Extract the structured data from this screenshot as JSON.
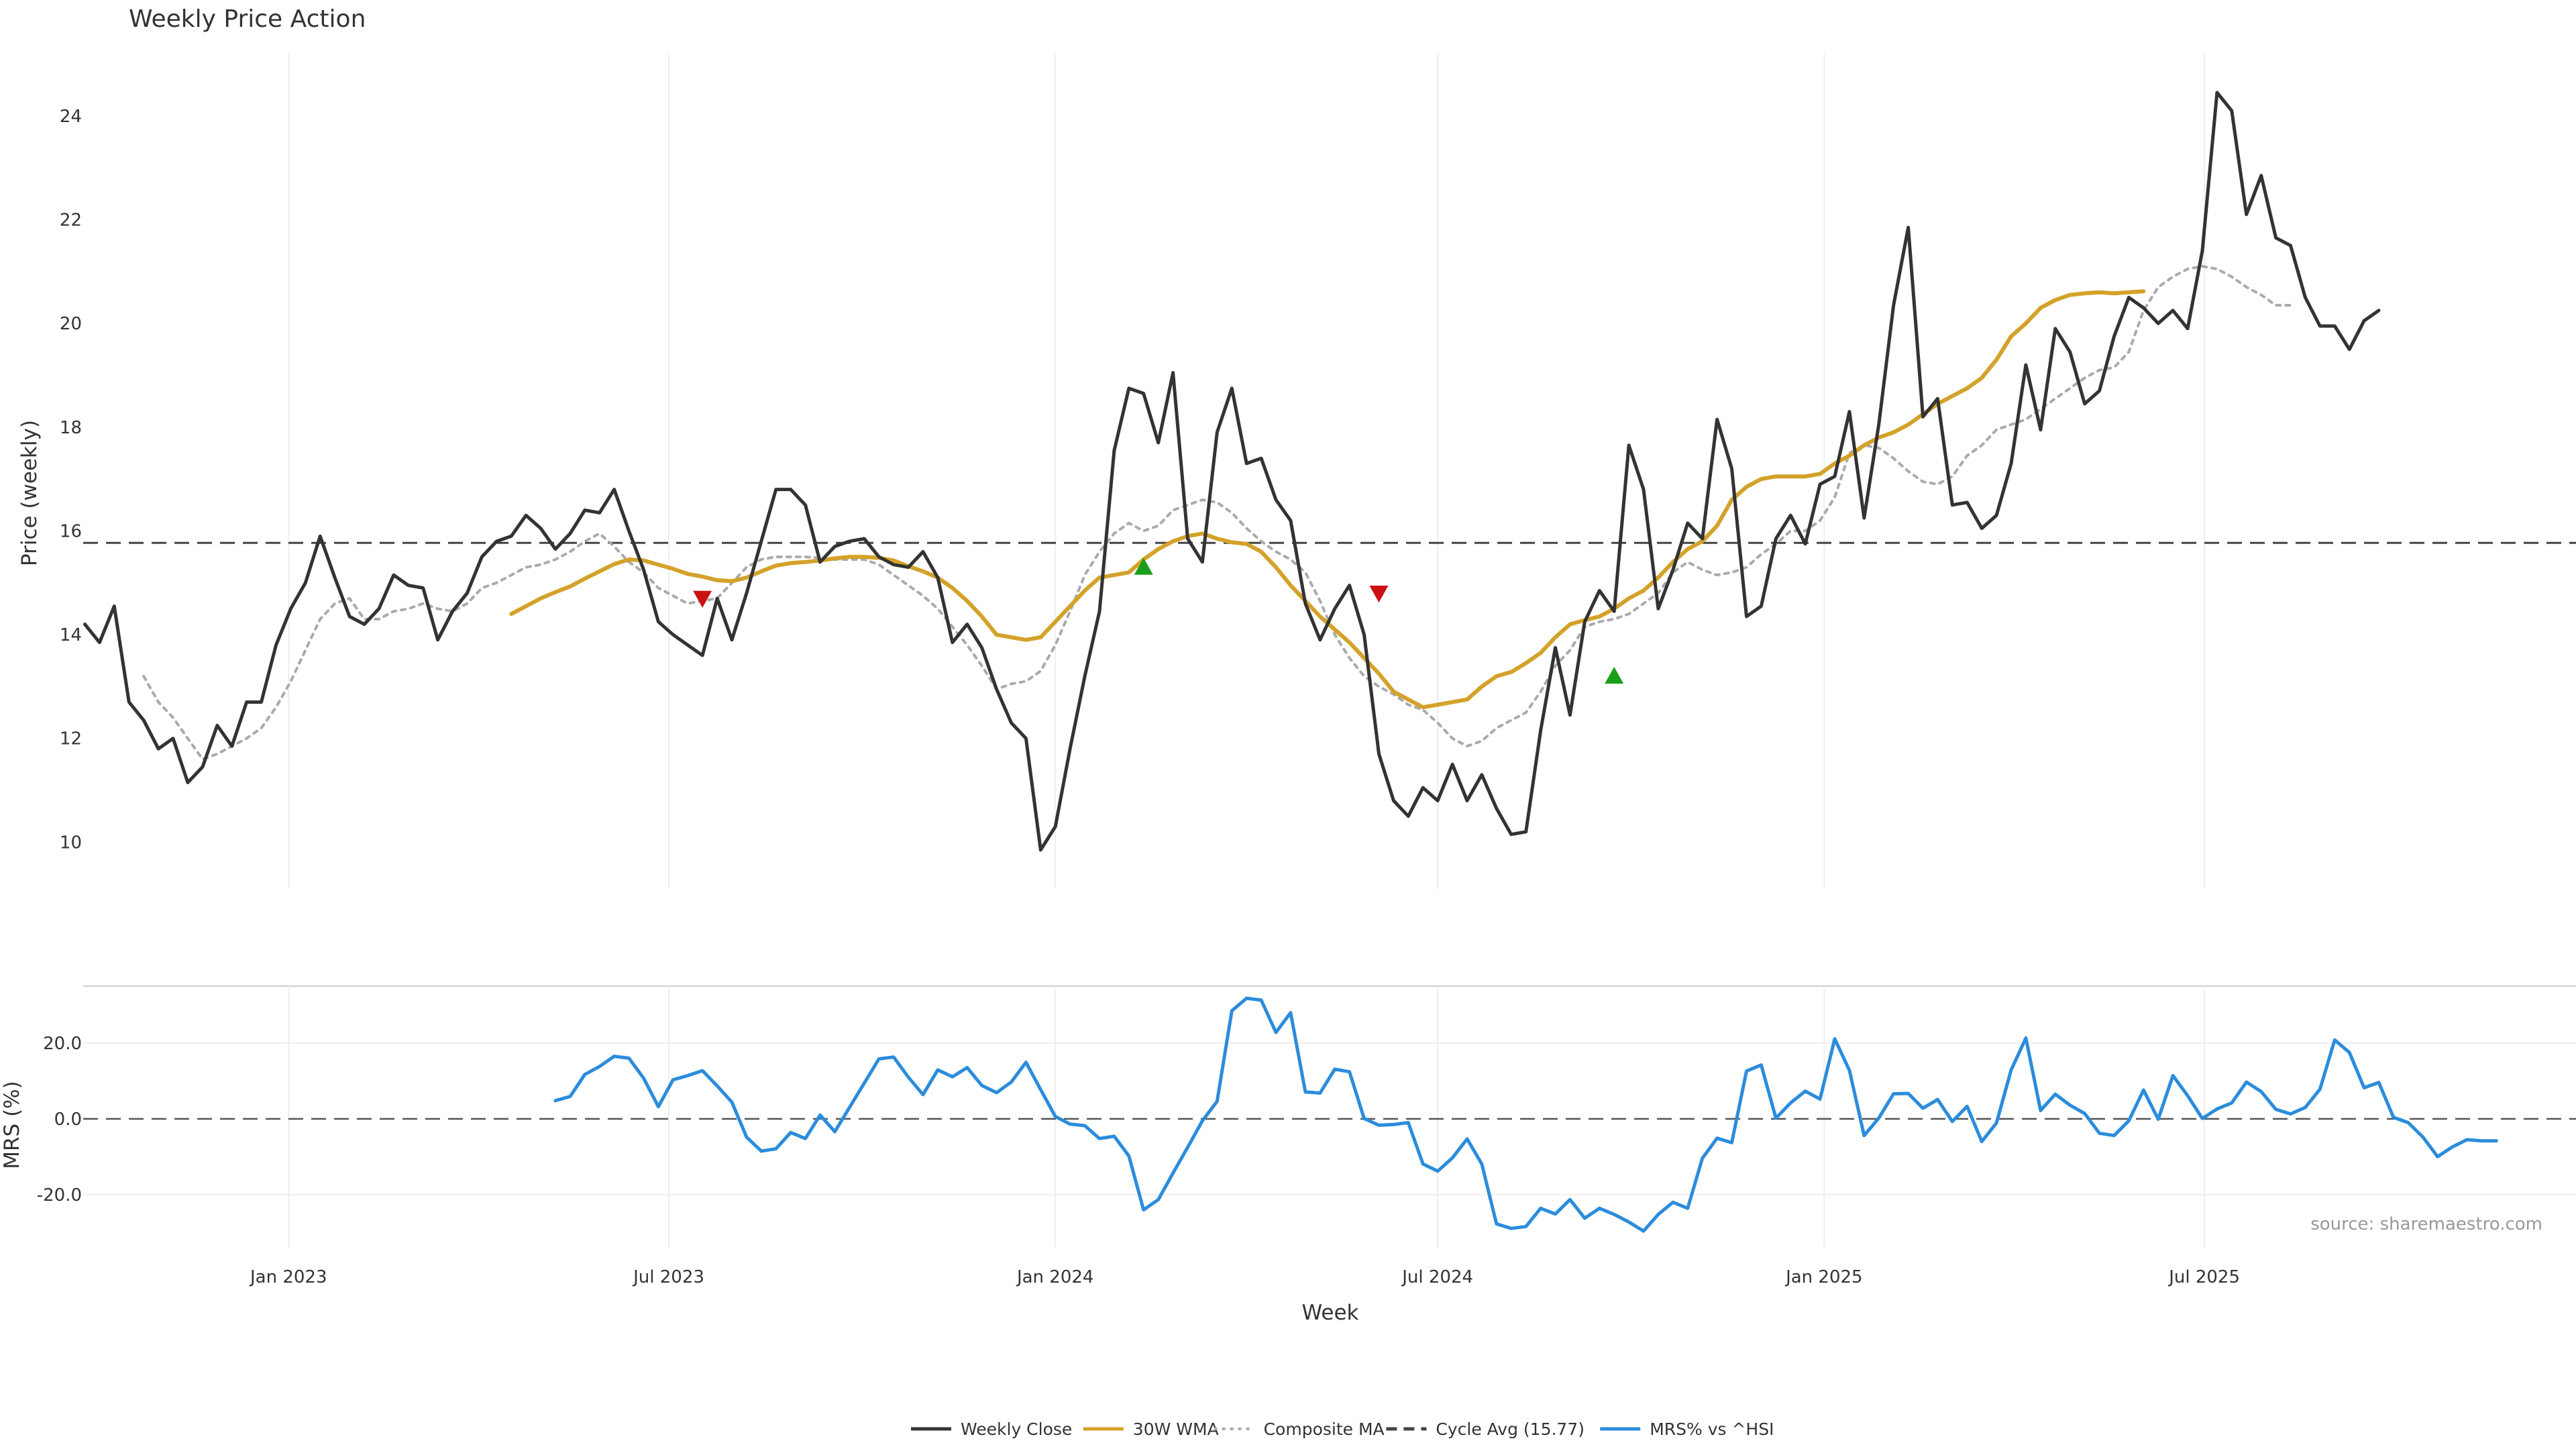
{
  "chart_data": {
    "type": "line",
    "title": "Weekly Price Action",
    "xlabel": "Week",
    "source": "source: sharemaestro.com",
    "x_start": "2022-09-26",
    "x_ticks": [
      {
        "date": "2023-01-01",
        "label": "Jan 2023"
      },
      {
        "date": "2023-07-01",
        "label": "Jul 2023"
      },
      {
        "date": "2024-01-01",
        "label": "Jan 2024"
      },
      {
        "date": "2024-07-01",
        "label": "Jul 2024"
      },
      {
        "date": "2025-01-01",
        "label": "Jan 2025"
      },
      {
        "date": "2025-07-01",
        "label": "Jul 2025"
      }
    ],
    "price_panel": {
      "ylabel": "Price (weekly)",
      "ylim": [
        9.1,
        25.2
      ],
      "yticks": [
        10,
        12,
        14,
        16,
        18,
        20,
        22,
        24
      ],
      "cycle_avg": 15.77
    },
    "mrs_panel": {
      "ylabel": "MRS (%)",
      "ylim": [
        -34,
        35
      ],
      "yticks": [
        20,
        0,
        -20
      ],
      "ytick_labels": [
        "20.0",
        "0.0",
        "-20.0"
      ]
    },
    "series": [
      {
        "name": "Weekly Close",
        "color": "#333333",
        "start_week": 0,
        "values": [
          14.2,
          13.85,
          14.55,
          12.7,
          12.35,
          11.8,
          12.0,
          11.15,
          11.45,
          12.25,
          11.85,
          12.7,
          12.7,
          13.8,
          14.5,
          15.0,
          15.9,
          15.1,
          14.35,
          14.2,
          14.5,
          15.15,
          14.95,
          14.9,
          13.9,
          14.45,
          14.8,
          15.5,
          15.8,
          15.9,
          16.3,
          16.05,
          15.65,
          15.95,
          16.4,
          16.35,
          16.8,
          16.0,
          15.25,
          14.25,
          14.0,
          13.8,
          13.6,
          14.7,
          13.9,
          14.8,
          15.8,
          16.8,
          16.8,
          16.5,
          15.4,
          15.7,
          15.8,
          15.85,
          15.5,
          15.35,
          15.3,
          15.6,
          15.1,
          13.85,
          14.2,
          13.75,
          12.95,
          12.3,
          12.0,
          9.85,
          10.3,
          11.8,
          13.2,
          14.45,
          17.55,
          18.75,
          18.65,
          17.7,
          19.05,
          15.85,
          15.4,
          17.9,
          18.75,
          17.3,
          17.4,
          16.6,
          16.2,
          14.6,
          13.9,
          14.5,
          14.95,
          14.0,
          11.7,
          10.8,
          10.5,
          11.05,
          10.8,
          11.5,
          10.8,
          11.3,
          10.65,
          10.15,
          10.2,
          12.15,
          13.75,
          12.45,
          14.25,
          14.85,
          14.45,
          17.65,
          16.8,
          14.5,
          15.25,
          16.15,
          15.85,
          18.15,
          17.2,
          14.35,
          14.55,
          15.85,
          16.3,
          15.75,
          16.9,
          17.05,
          18.3,
          16.25,
          18.05,
          20.35,
          21.85,
          18.2,
          18.55,
          16.5,
          16.55,
          16.05,
          16.3,
          17.3,
          19.2,
          17.95,
          19.9,
          19.45,
          18.45,
          18.7,
          19.75,
          20.5,
          20.3,
          20.0,
          20.25,
          19.9,
          21.4,
          24.45,
          24.1,
          22.1,
          22.85,
          21.65,
          21.5,
          20.5,
          19.95,
          19.95,
          19.5,
          20.05,
          20.25
        ]
      },
      {
        "name": "30W WMA",
        "color": "#d4a22a",
        "start_week": 29,
        "values": [
          14.4,
          14.55,
          14.7,
          14.82,
          14.93,
          15.08,
          15.22,
          15.36,
          15.45,
          15.43,
          15.35,
          15.27,
          15.17,
          15.12,
          15.05,
          15.03,
          15.1,
          15.22,
          15.33,
          15.38,
          15.4,
          15.43,
          15.47,
          15.5,
          15.5,
          15.48,
          15.43,
          15.32,
          15.22,
          15.1,
          14.9,
          14.65,
          14.35,
          14.0,
          13.95,
          13.9,
          13.95,
          14.25,
          14.55,
          14.85,
          15.1,
          15.15,
          15.2,
          15.45,
          15.65,
          15.8,
          15.9,
          15.95,
          15.85,
          15.78,
          15.75,
          15.6,
          15.3,
          14.95,
          14.65,
          14.35,
          14.1,
          13.85,
          13.55,
          13.25,
          12.9,
          12.75,
          12.6,
          12.65,
          12.7,
          12.75,
          13.0,
          13.2,
          13.28,
          13.45,
          13.65,
          13.95,
          14.2,
          14.28,
          14.35,
          14.5,
          14.7,
          14.85,
          15.1,
          15.4,
          15.65,
          15.8,
          16.1,
          16.6,
          16.85,
          17.0,
          17.05,
          17.05,
          17.05,
          17.1,
          17.3,
          17.45,
          17.65,
          17.8,
          17.9,
          18.05,
          18.25,
          18.45,
          18.6,
          18.75,
          18.95,
          19.3,
          19.75,
          20.0,
          20.3,
          20.45,
          20.55,
          20.58,
          20.6,
          20.58,
          20.6,
          20.62
        ]
      },
      {
        "name": "Composite MA",
        "color": "#aaaaaa",
        "start_week": 4,
        "values": [
          13.2,
          12.7,
          12.4,
          12.0,
          11.6,
          11.7,
          11.85,
          12.0,
          12.2,
          12.6,
          13.1,
          13.7,
          14.3,
          14.6,
          14.7,
          14.3,
          14.3,
          14.45,
          14.5,
          14.6,
          14.5,
          14.45,
          14.6,
          14.9,
          15.0,
          15.15,
          15.3,
          15.35,
          15.45,
          15.6,
          15.8,
          15.95,
          15.7,
          15.4,
          15.2,
          14.9,
          14.75,
          14.6,
          14.65,
          14.7,
          15.0,
          15.3,
          15.45,
          15.5,
          15.5,
          15.5,
          15.48,
          15.45,
          15.45,
          15.45,
          15.35,
          15.15,
          14.95,
          14.75,
          14.5,
          14.15,
          13.8,
          13.4,
          12.95,
          13.05,
          13.1,
          13.3,
          13.8,
          14.45,
          15.15,
          15.6,
          15.95,
          16.15,
          16.0,
          16.1,
          16.4,
          16.5,
          16.6,
          16.55,
          16.35,
          16.05,
          15.8,
          15.6,
          15.45,
          15.2,
          14.65,
          14.0,
          13.55,
          13.2,
          13.0,
          12.85,
          12.65,
          12.55,
          12.3,
          12.0,
          11.85,
          11.95,
          12.2,
          12.35,
          12.5,
          12.9,
          13.4,
          13.7,
          14.15,
          14.25,
          14.3,
          14.4,
          14.6,
          14.8,
          15.2,
          15.4,
          15.25,
          15.15,
          15.2,
          15.3,
          15.55,
          15.75,
          16.0,
          16.0,
          16.2,
          16.65,
          17.5,
          17.65,
          17.6,
          17.4,
          17.15,
          16.95,
          16.9,
          17.05,
          17.45,
          17.65,
          17.95,
          18.05,
          18.15,
          18.35,
          18.55,
          18.75,
          18.95,
          19.1,
          19.15,
          19.45,
          20.25,
          20.7,
          20.9,
          21.05,
          21.1,
          21.05,
          20.9,
          20.7,
          20.55,
          20.35,
          20.35
        ]
      },
      {
        "name": "MRS% vs ^HSI",
        "color": "#2b8cdc",
        "start_week": 32,
        "values": [
          4.8,
          5.9,
          11.7,
          13.8,
          16.5,
          16.0,
          10.7,
          3.2,
          10.3,
          11.4,
          12.7,
          8.7,
          4.4,
          -4.8,
          -8.5,
          -7.9,
          -3.6,
          -5.2,
          1.0,
          -3.4,
          3.0,
          9.4,
          15.8,
          16.3,
          11.0,
          6.4,
          12.9,
          11.1,
          13.5,
          8.8,
          6.9,
          9.7,
          14.9,
          7.7,
          0.6,
          -1.4,
          -1.8,
          -5.2,
          -4.6,
          -9.8,
          -24.0,
          -21.3,
          -14.3,
          -7.5,
          -0.5,
          4.6,
          28.5,
          31.8,
          31.3,
          22.8,
          28.0,
          7.1,
          6.8,
          13.1,
          12.4,
          0.1,
          -1.7,
          -1.5,
          -1.0,
          -11.9,
          -13.8,
          -10.3,
          -5.3,
          -11.9,
          -27.7,
          -28.9,
          -28.4,
          -23.6,
          -25.1,
          -21.3,
          -26.2,
          -23.6,
          -25.2,
          -27.2,
          -29.6,
          -25.2,
          -22.0,
          -23.6,
          -10.4,
          -5.1,
          -6.3,
          12.6,
          14.2,
          0.2,
          4.2,
          7.3,
          5.2,
          21.1,
          12.8,
          -4.4,
          0.2,
          6.6,
          6.7,
          2.8,
          5.1,
          -0.7,
          3.3,
          -6.0,
          -1.1,
          12.9,
          21.3,
          2.2,
          6.5,
          3.6,
          1.4,
          -3.8,
          -4.4,
          -0.5,
          7.6,
          -0.1,
          11.4,
          6.1,
          0.1,
          2.6,
          4.2,
          9.7,
          7.2,
          2.5,
          1.3,
          3.0,
          7.8,
          20.8,
          17.5,
          8.2,
          9.6,
          0.4,
          -1.0,
          -4.8,
          -10.0,
          -7.4,
          -5.5,
          -5.8,
          -5.8
        ]
      }
    ],
    "markers": [
      {
        "type": "sell",
        "week": 42,
        "y": 14.7,
        "color": "#cc1111"
      },
      {
        "type": "buy",
        "week": 72,
        "y": 15.3,
        "color": "#1a9e1a"
      },
      {
        "type": "sell",
        "week": 88,
        "y": 14.8,
        "color": "#cc1111"
      },
      {
        "type": "buy",
        "week": 104,
        "y": 13.2,
        "color": "#1a9e1a"
      }
    ],
    "legend": {
      "placement": "bottom-center",
      "items": [
        {
          "label": "Weekly Close",
          "style": "solid",
          "color": "#333333"
        },
        {
          "label": "30W WMA",
          "style": "solid",
          "color": "#d4a22a"
        },
        {
          "label": "Composite MA",
          "style": "dotted",
          "color": "#aaaaaa"
        },
        {
          "label": "Cycle Avg (15.77)",
          "style": "dashed",
          "color": "#444444"
        },
        {
          "label": "MRS% vs ^HSI",
          "style": "solid",
          "color": "#2b8cdc"
        }
      ]
    }
  }
}
